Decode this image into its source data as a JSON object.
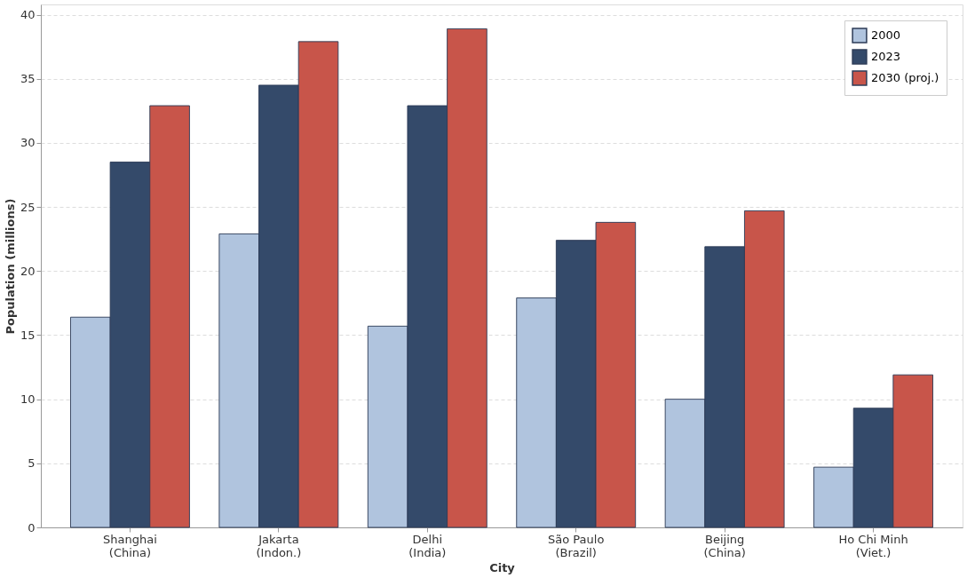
{
  "chart_data": {
    "type": "bar",
    "xlabel": "City",
    "ylabel": "Population (millions)",
    "categories": [
      "Shanghai\n(China)",
      "Jakarta\n(Indon.)",
      "Delhi\n(India)",
      "São Paulo\n(Brazil)",
      "Beijing\n(China)",
      "Ho Chi Minh\n(Viet.)"
    ],
    "series": [
      {
        "name": "2000",
        "color": "#b0c4de",
        "values": [
          16.4,
          22.9,
          15.7,
          17.9,
          10.0,
          4.7
        ]
      },
      {
        "name": "2023",
        "color": "#344a6a",
        "values": [
          28.5,
          34.5,
          32.9,
          22.4,
          21.9,
          9.3
        ]
      },
      {
        "name": "2030 (proj.)",
        "color": "#c8554a",
        "values": [
          32.9,
          37.9,
          38.9,
          23.8,
          24.7,
          11.9
        ]
      }
    ],
    "ylim": [
      0,
      40.8
    ],
    "yticks": [
      0,
      5,
      10,
      15,
      20,
      25,
      30,
      35,
      40
    ],
    "grid": "y",
    "legend": "top right"
  }
}
